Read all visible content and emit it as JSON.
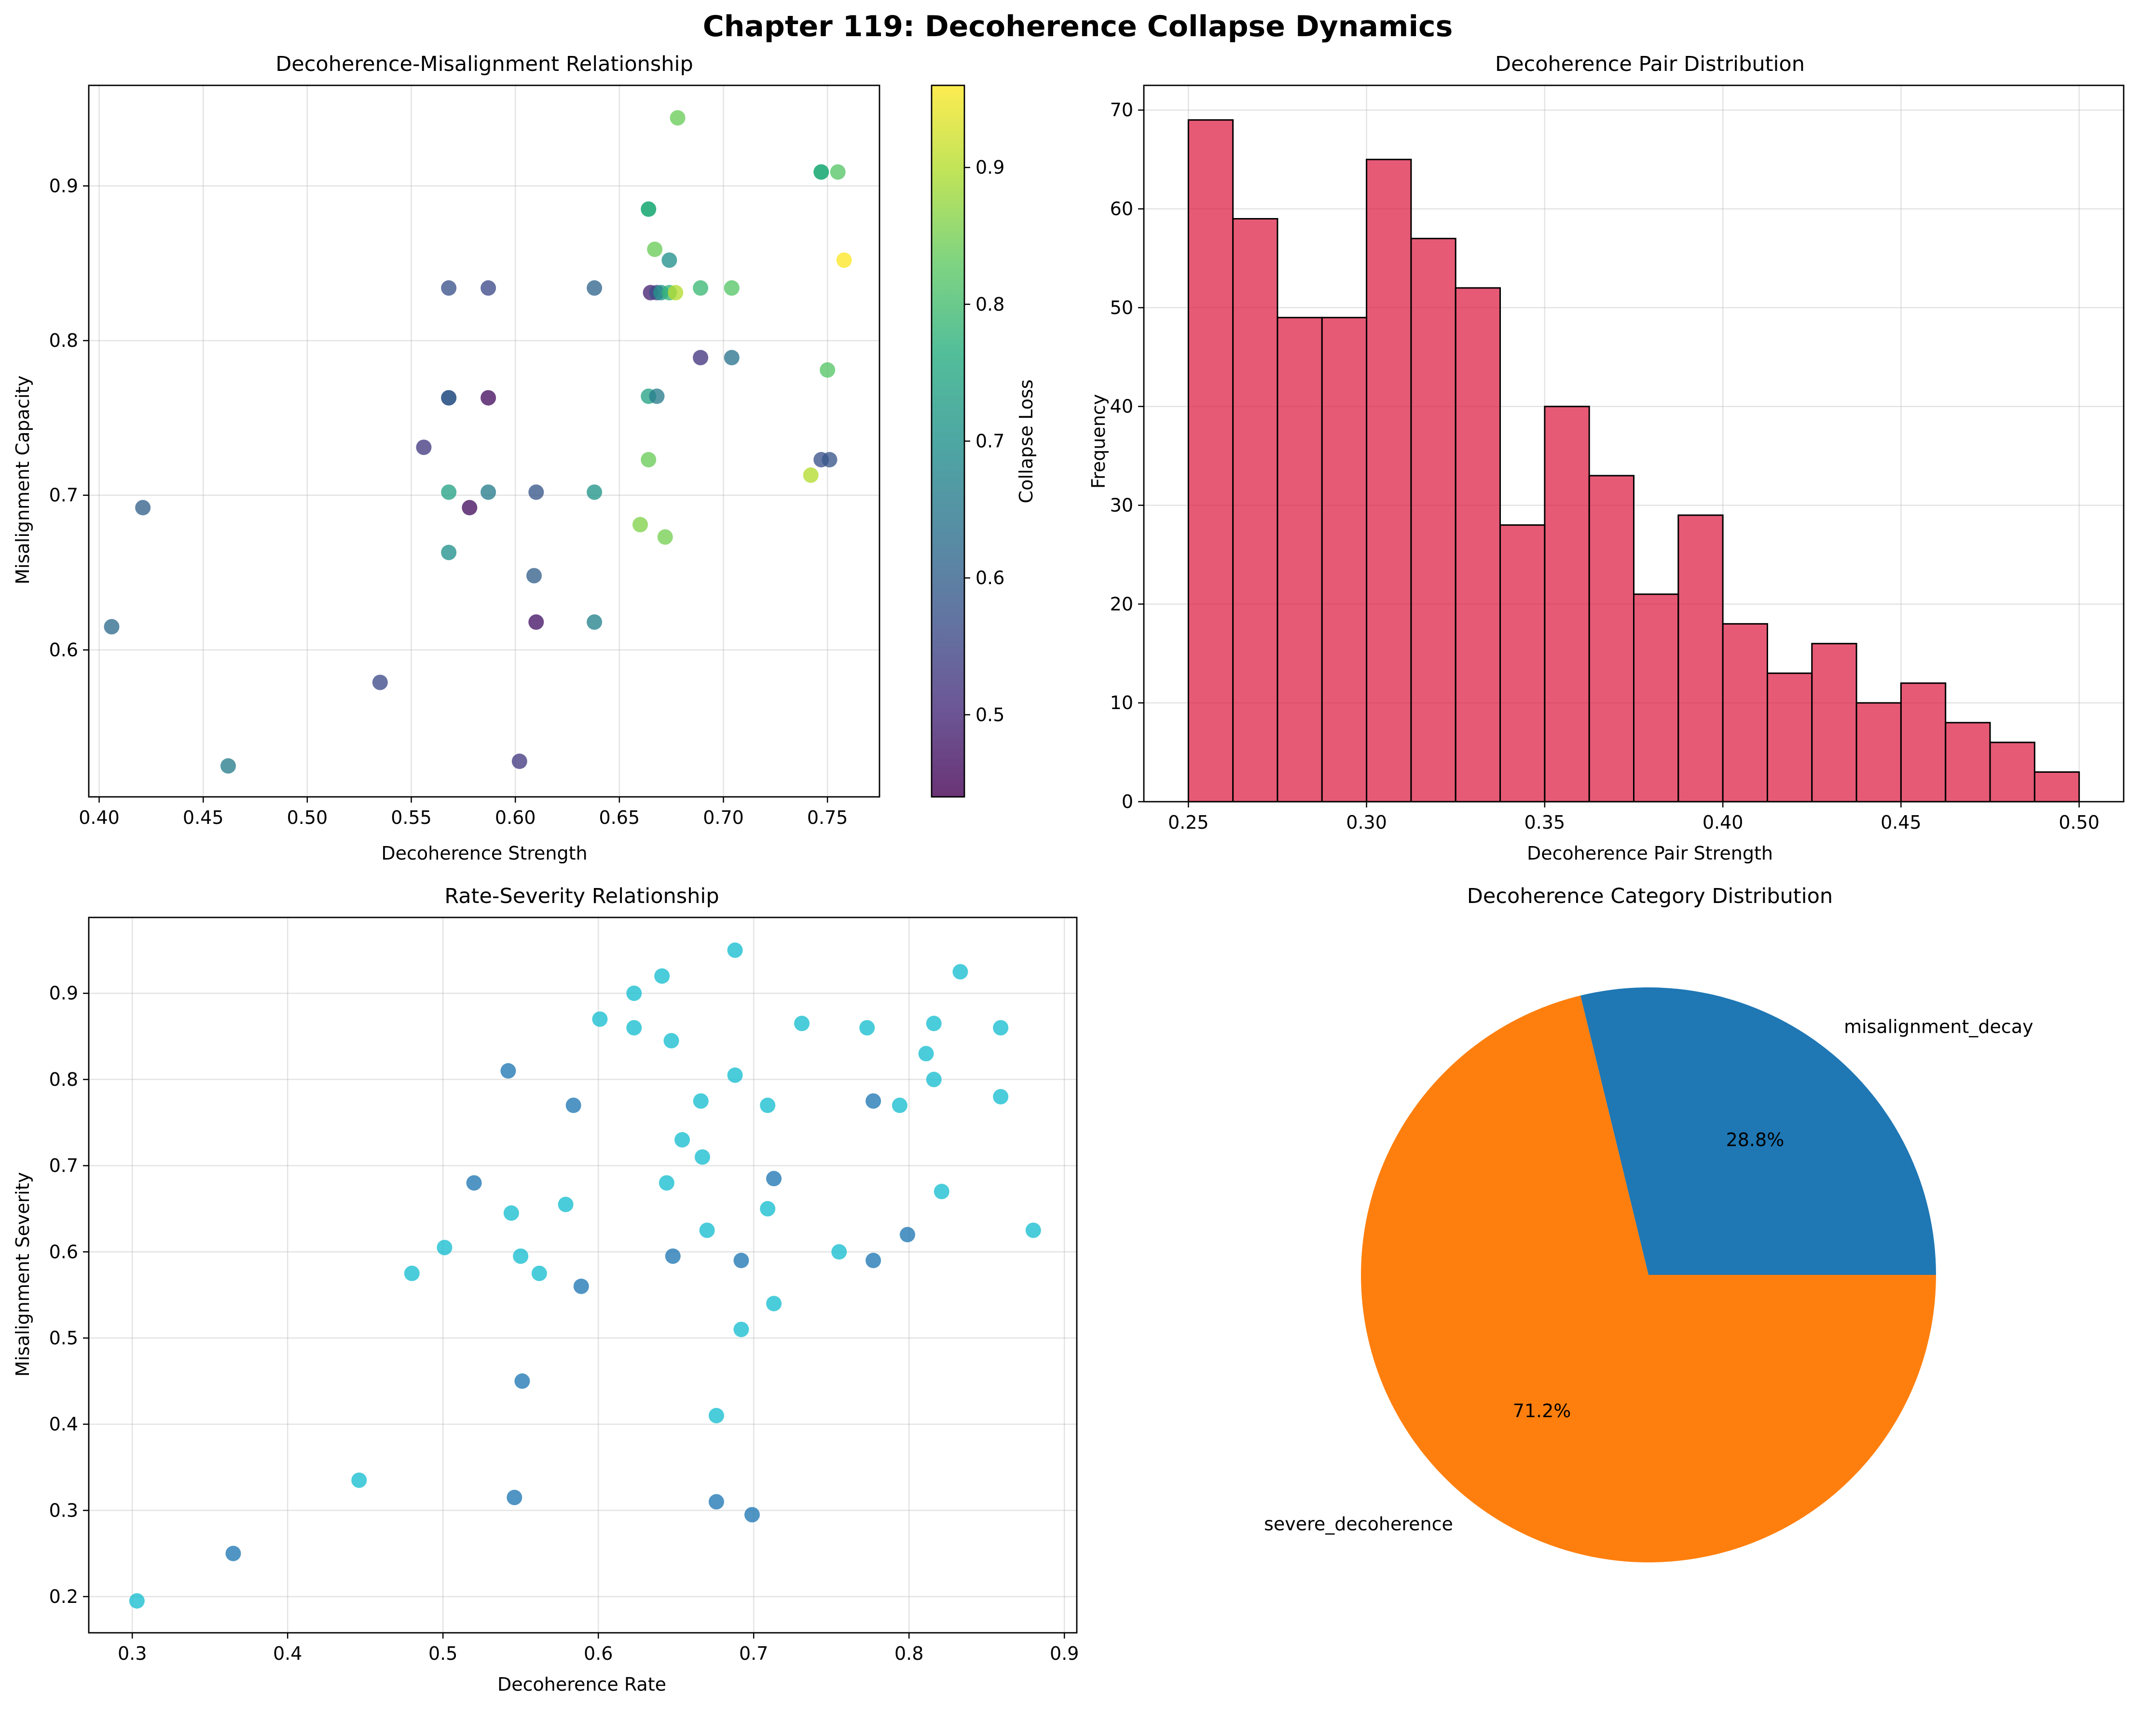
{
  "figure": {
    "title": "Chapter 119: Decoherence Collapse Dynamics"
  },
  "chart_data": [
    {
      "type": "scatter",
      "title": "Decoherence-Misalignment Relationship",
      "xlabel": "Decoherence Strength",
      "ylabel": "Misalignment Capacity",
      "xlim": [
        0.395,
        0.775
      ],
      "ylim": [
        0.505,
        0.965
      ],
      "xticks": [
        0.4,
        0.45,
        0.5,
        0.55,
        0.6,
        0.65,
        0.7,
        0.75
      ],
      "yticks": [
        0.6,
        0.7,
        0.8,
        0.9
      ],
      "grid": true,
      "colormap": "viridis",
      "colorbar": {
        "label": "Collapse Loss",
        "range": [
          0.44,
          0.96
        ],
        "ticks": [
          0.5,
          0.6,
          0.7,
          0.8,
          0.9
        ]
      },
      "points": [
        {
          "x": 0.406,
          "y": 0.615,
          "c": 0.62
        },
        {
          "x": 0.421,
          "y": 0.692,
          "c": 0.6
        },
        {
          "x": 0.462,
          "y": 0.525,
          "c": 0.66
        },
        {
          "x": 0.535,
          "y": 0.579,
          "c": 0.56
        },
        {
          "x": 0.556,
          "y": 0.731,
          "c": 0.53
        },
        {
          "x": 0.568,
          "y": 0.834,
          "c": 0.57
        },
        {
          "x": 0.568,
          "y": 0.763,
          "c": 0.59
        },
        {
          "x": 0.568,
          "y": 0.763,
          "c": 0.59
        },
        {
          "x": 0.568,
          "y": 0.702,
          "c": 0.74
        },
        {
          "x": 0.568,
          "y": 0.663,
          "c": 0.7
        },
        {
          "x": 0.578,
          "y": 0.692,
          "c": 0.46
        },
        {
          "x": 0.587,
          "y": 0.834,
          "c": 0.56
        },
        {
          "x": 0.587,
          "y": 0.763,
          "c": 0.46
        },
        {
          "x": 0.587,
          "y": 0.702,
          "c": 0.66
        },
        {
          "x": 0.602,
          "y": 0.528,
          "c": 0.53
        },
        {
          "x": 0.609,
          "y": 0.648,
          "c": 0.6
        },
        {
          "x": 0.61,
          "y": 0.702,
          "c": 0.58
        },
        {
          "x": 0.61,
          "y": 0.618,
          "c": 0.47
        },
        {
          "x": 0.638,
          "y": 0.834,
          "c": 0.61
        },
        {
          "x": 0.638,
          "y": 0.702,
          "c": 0.71
        },
        {
          "x": 0.638,
          "y": 0.618,
          "c": 0.67
        },
        {
          "x": 0.66,
          "y": 0.681,
          "c": 0.86
        },
        {
          "x": 0.664,
          "y": 0.885,
          "c": 0.77
        },
        {
          "x": 0.664,
          "y": 0.885,
          "c": 0.77
        },
        {
          "x": 0.664,
          "y": 0.764,
          "c": 0.74
        },
        {
          "x": 0.664,
          "y": 0.723,
          "c": 0.84
        },
        {
          "x": 0.665,
          "y": 0.831,
          "c": 0.49
        },
        {
          "x": 0.667,
          "y": 0.859,
          "c": 0.84
        },
        {
          "x": 0.668,
          "y": 0.831,
          "c": 0.56
        },
        {
          "x": 0.668,
          "y": 0.764,
          "c": 0.66
        },
        {
          "x": 0.67,
          "y": 0.831,
          "c": 0.71
        },
        {
          "x": 0.672,
          "y": 0.673,
          "c": 0.85
        },
        {
          "x": 0.674,
          "y": 0.852,
          "c": 0.7
        },
        {
          "x": 0.674,
          "y": 0.831,
          "c": 0.78
        },
        {
          "x": 0.677,
          "y": 0.831,
          "c": 0.9
        },
        {
          "x": 0.678,
          "y": 0.944,
          "c": 0.84
        },
        {
          "x": 0.689,
          "y": 0.834,
          "c": 0.79
        },
        {
          "x": 0.689,
          "y": 0.789,
          "c": 0.52
        },
        {
          "x": 0.704,
          "y": 0.834,
          "c": 0.82
        },
        {
          "x": 0.704,
          "y": 0.789,
          "c": 0.64
        },
        {
          "x": 0.742,
          "y": 0.713,
          "c": 0.9
        },
        {
          "x": 0.747,
          "y": 0.909,
          "c": 0.77
        },
        {
          "x": 0.747,
          "y": 0.909,
          "c": 0.77
        },
        {
          "x": 0.747,
          "y": 0.723,
          "c": 0.57
        },
        {
          "x": 0.75,
          "y": 0.781,
          "c": 0.82
        },
        {
          "x": 0.751,
          "y": 0.723,
          "c": 0.58
        },
        {
          "x": 0.755,
          "y": 0.909,
          "c": 0.82
        },
        {
          "x": 0.758,
          "y": 0.852,
          "c": 0.96
        }
      ]
    },
    {
      "type": "bar",
      "subtype": "histogram",
      "title": "Decoherence Pair Distribution",
      "xlabel": "Decoherence Pair Strength",
      "ylabel": "Frequency",
      "xlim": [
        0.2375,
        0.5125
      ],
      "ylim": [
        0,
        72.5
      ],
      "xticks": [
        0.25,
        0.3,
        0.35,
        0.4,
        0.45,
        0.5
      ],
      "yticks": [
        0,
        10,
        20,
        30,
        40,
        50,
        60,
        70
      ],
      "grid": true,
      "color": "#DC143C",
      "bin_edges": [
        0.25,
        0.2625,
        0.275,
        0.2875,
        0.3,
        0.3125,
        0.325,
        0.3375,
        0.35,
        0.3625,
        0.375,
        0.3875,
        0.4,
        0.4125,
        0.425,
        0.4375,
        0.45,
        0.4625,
        0.475,
        0.4875,
        0.5
      ],
      "values": [
        69,
        59,
        49,
        49,
        65,
        57,
        52,
        28,
        40,
        33,
        21,
        29,
        18,
        13,
        16,
        10,
        12,
        8,
        6,
        3
      ]
    },
    {
      "type": "scatter",
      "title": "Rate-Severity Relationship",
      "xlabel": "Decoherence Rate",
      "ylabel": "Misalignment Severity",
      "xlim": [
        0.272,
        0.908
      ],
      "ylim": [
        0.158,
        0.988
      ],
      "xticks": [
        0.3,
        0.4,
        0.5,
        0.6,
        0.7,
        0.8,
        0.9
      ],
      "yticks": [
        0.2,
        0.3,
        0.4,
        0.5,
        0.6,
        0.7,
        0.8,
        0.9
      ],
      "grid": true,
      "series": [
        {
          "name": "cyan",
          "color": "#17becf",
          "points": [
            {
              "x": 0.303,
              "y": 0.195
            },
            {
              "x": 0.446,
              "y": 0.335
            },
            {
              "x": 0.48,
              "y": 0.575
            },
            {
              "x": 0.501,
              "y": 0.605
            },
            {
              "x": 0.544,
              "y": 0.645
            },
            {
              "x": 0.55,
              "y": 0.595
            },
            {
              "x": 0.562,
              "y": 0.575
            },
            {
              "x": 0.579,
              "y": 0.655
            },
            {
              "x": 0.601,
              "y": 0.87
            },
            {
              "x": 0.623,
              "y": 0.9
            },
            {
              "x": 0.623,
              "y": 0.86
            },
            {
              "x": 0.641,
              "y": 0.92
            },
            {
              "x": 0.644,
              "y": 0.68
            },
            {
              "x": 0.647,
              "y": 0.845
            },
            {
              "x": 0.654,
              "y": 0.73
            },
            {
              "x": 0.666,
              "y": 0.775
            },
            {
              "x": 0.667,
              "y": 0.71
            },
            {
              "x": 0.67,
              "y": 0.625
            },
            {
              "x": 0.676,
              "y": 0.41
            },
            {
              "x": 0.688,
              "y": 0.95
            },
            {
              "x": 0.688,
              "y": 0.805
            },
            {
              "x": 0.692,
              "y": 0.51
            },
            {
              "x": 0.709,
              "y": 0.77
            },
            {
              "x": 0.709,
              "y": 0.65
            },
            {
              "x": 0.713,
              "y": 0.54
            },
            {
              "x": 0.731,
              "y": 0.865
            },
            {
              "x": 0.755,
              "y": 0.6
            },
            {
              "x": 0.773,
              "y": 0.86
            },
            {
              "x": 0.794,
              "y": 0.77
            },
            {
              "x": 0.811,
              "y": 0.83
            },
            {
              "x": 0.816,
              "y": 0.865
            },
            {
              "x": 0.816,
              "y": 0.8
            },
            {
              "x": 0.821,
              "y": 0.67
            },
            {
              "x": 0.833,
              "y": 0.925
            },
            {
              "x": 0.859,
              "y": 0.86
            },
            {
              "x": 0.859,
              "y": 0.78
            },
            {
              "x": 0.88,
              "y": 0.625
            }
          ]
        },
        {
          "name": "blue",
          "color": "#1f77b4",
          "points": [
            {
              "x": 0.365,
              "y": 0.25
            },
            {
              "x": 0.52,
              "y": 0.68
            },
            {
              "x": 0.542,
              "y": 0.81
            },
            {
              "x": 0.546,
              "y": 0.315
            },
            {
              "x": 0.551,
              "y": 0.45
            },
            {
              "x": 0.584,
              "y": 0.77
            },
            {
              "x": 0.589,
              "y": 0.56
            },
            {
              "x": 0.648,
              "y": 0.595
            },
            {
              "x": 0.676,
              "y": 0.31
            },
            {
              "x": 0.692,
              "y": 0.59
            },
            {
              "x": 0.699,
              "y": 0.295
            },
            {
              "x": 0.713,
              "y": 0.685
            },
            {
              "x": 0.777,
              "y": 0.775
            },
            {
              "x": 0.777,
              "y": 0.59
            },
            {
              "x": 0.799,
              "y": 0.62
            }
          ]
        }
      ]
    },
    {
      "type": "pie",
      "title": "Decoherence Category Distribution",
      "labels": [
        "misalignment_decay",
        "severe_decoherence"
      ],
      "values": [
        28.8,
        71.2
      ],
      "pct_labels": [
        "28.8%",
        "71.2%"
      ],
      "colors": [
        "#1f77b4",
        "#ff7f0e"
      ]
    }
  ]
}
